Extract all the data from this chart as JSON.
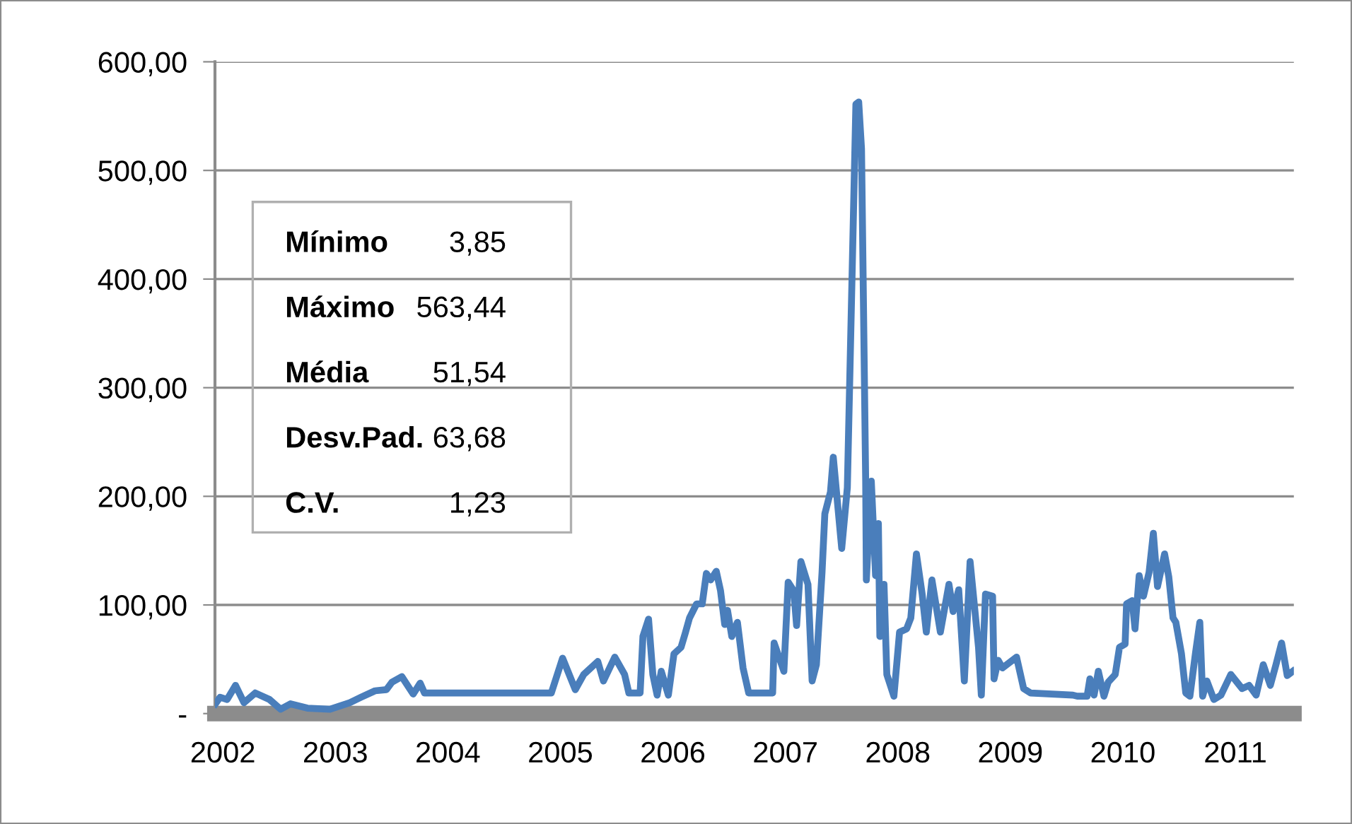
{
  "chart_data": {
    "type": "line",
    "x": [
      2001.934,
      2001.975,
      2002.038,
      2002.113,
      2002.188,
      2002.288,
      2002.414,
      2002.514,
      2002.601,
      2002.752,
      2002.952,
      2003.128,
      2003.228,
      2003.353,
      2003.454,
      2003.504,
      2003.591,
      2003.692,
      2003.754,
      2003.792,
      2003.88,
      2004.92,
      2005.02,
      2005.133,
      2005.208,
      2005.333,
      2005.383,
      2005.484,
      2005.571,
      2005.609,
      2005.709,
      2005.734,
      2005.784,
      2005.822,
      2005.86,
      2005.897,
      2005.96,
      2006.01,
      2006.073,
      2006.11,
      2006.148,
      2006.211,
      2006.261,
      2006.298,
      2006.336,
      2006.386,
      2006.424,
      2006.461,
      2006.486,
      2006.524,
      2006.574,
      2006.624,
      2006.674,
      2006.887,
      2006.9,
      2006.987,
      2007.025,
      2007.075,
      2007.1,
      2007.138,
      2007.201,
      2007.238,
      2007.276,
      2007.326,
      2007.351,
      2007.401,
      2007.426,
      2007.501,
      2007.551,
      2007.627,
      2007.652,
      2007.677,
      2007.714,
      2007.72,
      2007.764,
      2007.802,
      2007.827,
      2007.84,
      2007.877,
      2007.902,
      2007.965,
      2008.015,
      2008.078,
      2008.115,
      2008.165,
      2008.216,
      2008.253,
      2008.303,
      2008.378,
      2008.454,
      2008.491,
      2008.541,
      2008.591,
      2008.642,
      2008.717,
      2008.742,
      2008.779,
      2008.842,
      2008.855,
      2008.892,
      2008.93,
      2009.055,
      2009.118,
      2009.18,
      2009.556,
      2009.594,
      2009.682,
      2009.707,
      2009.744,
      2009.782,
      2009.832,
      2009.87,
      2009.932,
      2009.97,
      2010.02,
      2010.033,
      2010.083,
      2010.108,
      2010.145,
      2010.183,
      2010.233,
      2010.271,
      2010.308,
      2010.371,
      2010.408,
      2010.446,
      2010.471,
      2010.521,
      2010.559,
      2010.596,
      2010.646,
      2010.684,
      2010.709,
      2010.747,
      2010.809,
      2010.872,
      2010.96,
      2011.06,
      2011.122,
      2011.185,
      2011.248,
      2011.311,
      2011.361,
      2011.411,
      2011.461,
      2011.511
    ],
    "series": [
      {
        "color": "#4a7ebb",
        "values": [
          9,
          15,
          13,
          26,
          10,
          19,
          13,
          4,
          9,
          5,
          4,
          10,
          15,
          21,
          22,
          29,
          34,
          18,
          28,
          19,
          19,
          19,
          51,
          22,
          36,
          48,
          30,
          52,
          36,
          19,
          19,
          71,
          87,
          36,
          17,
          39,
          17,
          55,
          61,
          74,
          88,
          101,
          101,
          129,
          123,
          131,
          113,
          82,
          95,
          71,
          84,
          42,
          19,
          19,
          65,
          39,
          121,
          113,
          81,
          140,
          119,
          30,
          45,
          130,
          184,
          204,
          236,
          152,
          208,
          561,
          563,
          520,
          214,
          123,
          214,
          127,
          175,
          71,
          119,
          36,
          16,
          75,
          78,
          88,
          147,
          110,
          75,
          123,
          75,
          119,
          94,
          114,
          30,
          140,
          61,
          17,
          110,
          108,
          32,
          49,
          42,
          52,
          23,
          19,
          17,
          16,
          16,
          32,
          17,
          39,
          16,
          29,
          36,
          61,
          64,
          101,
          104,
          78,
          127,
          108,
          130,
          166,
          117,
          147,
          126,
          88,
          84,
          55,
          19,
          16,
          56,
          84,
          16,
          30,
          13,
          17,
          36,
          23,
          26,
          17,
          45,
          26,
          45,
          65,
          35,
          39
        ]
      }
    ],
    "xlim": [
      2001.93,
      2011.52
    ],
    "xticks": [
      2002,
      2003,
      2004,
      2005,
      2006,
      2007,
      2008,
      2009,
      2010,
      2011
    ],
    "ylim": [
      0,
      600
    ],
    "yticks": [
      {
        "value": 0,
        "label": "-"
      },
      {
        "value": 100,
        "label": "100,00"
      },
      {
        "value": 200,
        "label": "200,00"
      },
      {
        "value": 300,
        "label": "300,00"
      },
      {
        "value": 400,
        "label": "400,00"
      },
      {
        "value": 500,
        "label": "500,00"
      },
      {
        "value": 600,
        "label": "600,00"
      }
    ],
    "grid": "y",
    "legend": false,
    "marker": "none",
    "line_style": "solid",
    "annotations": [
      "Mínimo",
      "3,85",
      "Máximo",
      "563,44",
      "Média",
      "51,54",
      "Desv.Pad.",
      "63,68",
      "C.V.",
      "1,23"
    ]
  }
}
